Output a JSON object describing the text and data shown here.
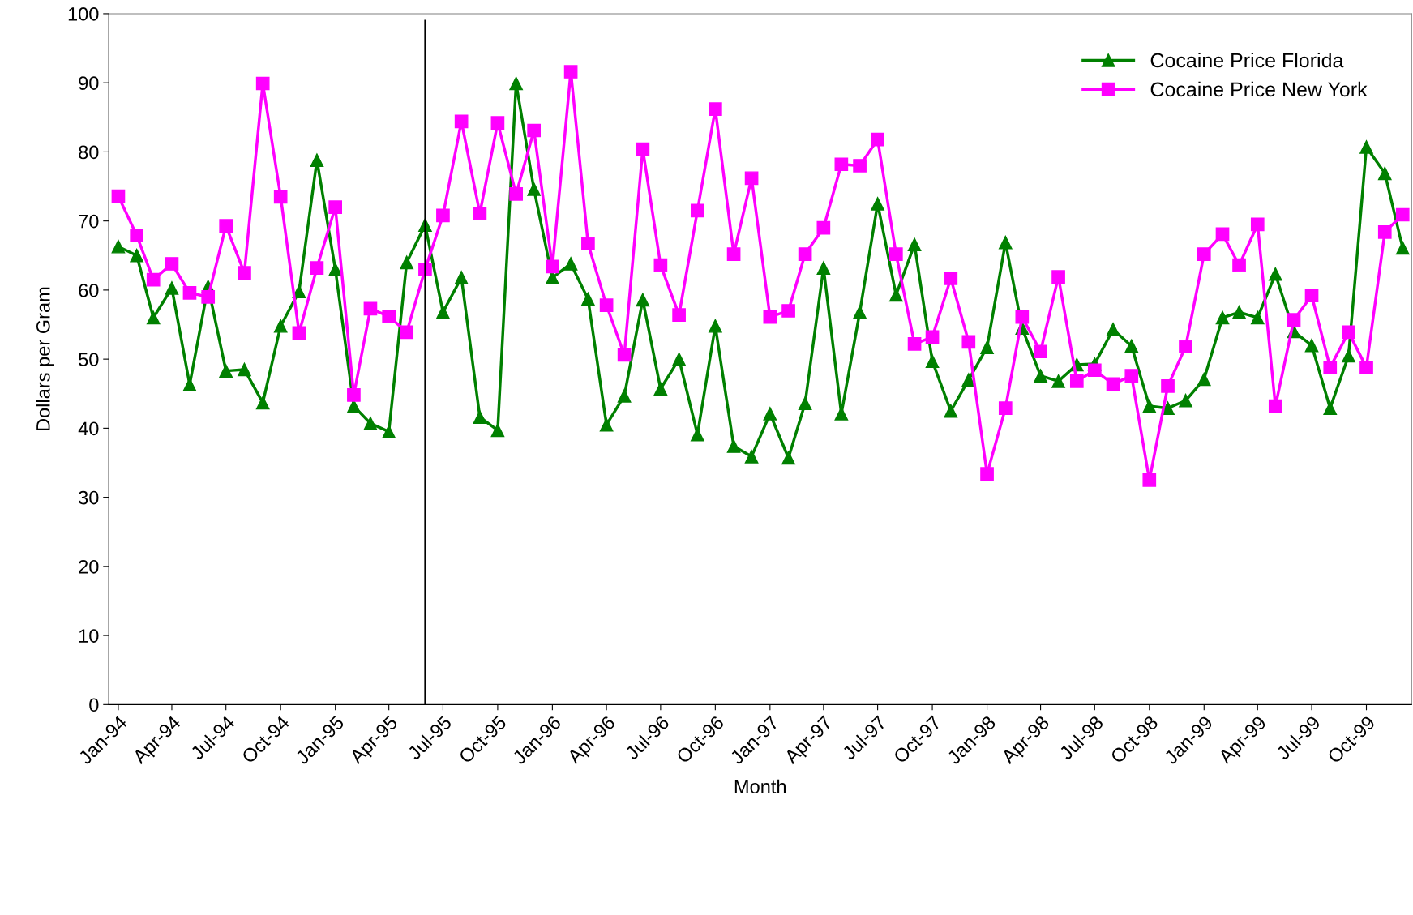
{
  "chart_data": {
    "type": "line",
    "xlabel": "Month",
    "ylabel": "Dollars per Gram",
    "x": [
      "1994-01",
      "1994-02",
      "1994-03",
      "1994-04",
      "1994-05",
      "1994-06",
      "1994-07",
      "1994-08",
      "1994-09",
      "1994-10",
      "1994-11",
      "1994-12",
      "1995-01",
      "1995-02",
      "1995-03",
      "1995-04",
      "1995-05",
      "1995-06",
      "1995-07",
      "1995-08",
      "1995-09",
      "1995-10",
      "1995-11",
      "1995-12",
      "1996-01",
      "1996-02",
      "1996-03",
      "1996-04",
      "1996-05",
      "1996-06",
      "1996-07",
      "1996-08",
      "1996-09",
      "1996-10",
      "1996-11",
      "1996-12",
      "1997-01",
      "1997-02",
      "1997-03",
      "1997-04",
      "1997-05",
      "1997-06",
      "1997-07",
      "1997-08",
      "1997-09",
      "1997-10",
      "1997-11",
      "1997-12",
      "1998-01",
      "1998-02",
      "1998-03",
      "1998-04",
      "1998-05",
      "1998-06",
      "1998-07",
      "1998-08",
      "1998-09",
      "1998-10",
      "1998-11",
      "1998-12",
      "1999-01",
      "1999-02",
      "1999-03",
      "1999-04",
      "1999-05",
      "1999-06",
      "1999-07",
      "1999-08",
      "1999-09",
      "1999-10",
      "1999-11",
      "1999-12"
    ],
    "series": [
      {
        "name": "Cocaine Price Florida",
        "color": "#008000",
        "marker": "triangle",
        "values": [
          66.3,
          65,
          56,
          60.3,
          46.3,
          60.5,
          48.3,
          48.5,
          43.7,
          54.8,
          59.8,
          78.8,
          63,
          43.2,
          40.7,
          39.5,
          64,
          69.4,
          56.8,
          61.8,
          41.6,
          39.7,
          89.9,
          74.6,
          61.8,
          63.8,
          58.7,
          40.5,
          44.7,
          58.6,
          45.7,
          50,
          39.1,
          54.8,
          37.4,
          35.9,
          42.1,
          35.7,
          43.6,
          63.2,
          42.1,
          56.8,
          72.5,
          59.3,
          66.6,
          49.7,
          42.5,
          47,
          51.7,
          66.9,
          54.5,
          47.6,
          46.8,
          49.2,
          49.3,
          54.3,
          51.9,
          43.2,
          42.9,
          44,
          47.1,
          56,
          56.8,
          56,
          62.3,
          54,
          52,
          42.9,
          50.5,
          80.7,
          76.9,
          66.1
        ]
      },
      {
        "name": "Cocaine Price New York",
        "color": "#ff00ff",
        "marker": "square",
        "values": [
          73.6,
          67.9,
          61.5,
          63.8,
          59.6,
          59,
          69.3,
          62.5,
          89.9,
          73.5,
          53.8,
          63.2,
          72,
          44.8,
          57.3,
          56.2,
          53.9,
          63,
          70.8,
          84.4,
          71.1,
          84.2,
          73.9,
          83.1,
          63.4,
          91.6,
          66.7,
          57.8,
          50.6,
          80.4,
          63.6,
          56.4,
          71.5,
          86.2,
          65.2,
          76.2,
          56.1,
          57,
          65.2,
          69,
          78.2,
          78,
          81.8,
          65.2,
          52.2,
          53.2,
          61.7,
          52.5,
          33.4,
          42.9,
          56.1,
          51.1,
          61.9,
          46.8,
          48.4,
          46.4,
          47.6,
          32.5,
          46.1,
          51.8,
          65.2,
          68.1,
          63.6,
          69.5,
          43.2,
          55.7,
          59.2,
          48.8,
          53.9,
          48.8,
          68.4,
          70.9
        ]
      }
    ],
    "xlim": [
      "1993-12-16",
      "1999-12-16"
    ],
    "xticks": [
      {
        "value": "1994-01",
        "label": "Jan-94"
      },
      {
        "value": "1994-04",
        "label": "Apr-94"
      },
      {
        "value": "1994-07",
        "label": "Jul-94"
      },
      {
        "value": "1994-10",
        "label": "Oct-94"
      },
      {
        "value": "1995-01",
        "label": "Jan-95"
      },
      {
        "value": "1995-04",
        "label": "Apr-95"
      },
      {
        "value": "1995-07",
        "label": "Jul-95"
      },
      {
        "value": "1995-10",
        "label": "Oct-95"
      },
      {
        "value": "1996-01",
        "label": "Jan-96"
      },
      {
        "value": "1996-04",
        "label": "Apr-96"
      },
      {
        "value": "1996-07",
        "label": "Jul-96"
      },
      {
        "value": "1996-10",
        "label": "Oct-96"
      },
      {
        "value": "1997-01",
        "label": "Jan-97"
      },
      {
        "value": "1997-04",
        "label": "Apr-97"
      },
      {
        "value": "1997-07",
        "label": "Jul-97"
      },
      {
        "value": "1997-10",
        "label": "Oct-97"
      },
      {
        "value": "1998-01",
        "label": "Jan-98"
      },
      {
        "value": "1998-04",
        "label": "Apr-98"
      },
      {
        "value": "1998-07",
        "label": "Jul-98"
      },
      {
        "value": "1998-10",
        "label": "Oct-98"
      },
      {
        "value": "1999-01",
        "label": "Jan-99"
      },
      {
        "value": "1999-04",
        "label": "Apr-99"
      },
      {
        "value": "1999-07",
        "label": "Jul-99"
      },
      {
        "value": "1999-10",
        "label": "Oct-99"
      }
    ],
    "ylim": [
      0,
      100
    ],
    "yticks": [
      0,
      10,
      20,
      30,
      40,
      50,
      60,
      70,
      80,
      90,
      100
    ],
    "ref_lines": [
      {
        "axis": "x",
        "value": "1995-06",
        "color": "#000000"
      }
    ],
    "grid": false,
    "legend": "top right",
    "line_style": "solid"
  }
}
